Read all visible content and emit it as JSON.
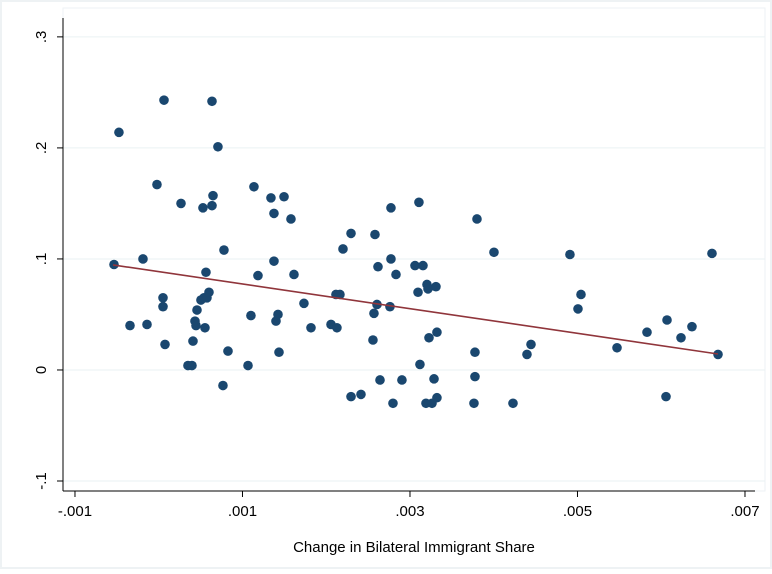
{
  "chart_data": {
    "type": "scatter",
    "xlabel": "Change in Bilateral Immigrant Share",
    "x": [
      -0.000534,
      -0.000475,
      -0.000343,
      -0.000188,
      -0.00014,
      -2.1e-05,
      5.1e-05,
      5.1e-05,
      7.5e-05,
      6.3e-05,
      0.000266,
      0.000349,
      0.000397,
      0.000409,
      0.000433,
      0.000445,
      0.000457,
      0.000504,
      0.000528,
      0.00054,
      0.000552,
      0.000564,
      0.000576,
      0.0006,
      0.000636,
      0.000648,
      0.000636,
      0.000707,
      0.000779,
      0.000767,
      0.000827,
      0.001066,
      0.001101,
      0.001137,
      0.001185,
      0.00134,
      0.001376,
      0.001376,
      0.0014,
      0.001424,
      0.001436,
      0.001496,
      0.001579,
      0.001615,
      0.001734,
      0.001818,
      0.002057,
      0.002116,
      0.002128,
      0.002164,
      0.0022,
      0.002296,
      0.002296,
      0.002415,
      0.002558,
      0.00257,
      0.002582,
      0.002606,
      0.002618,
      0.002642,
      0.002761,
      0.002773,
      0.002773,
      0.002797,
      0.002833,
      0.002904,
      0.00306,
      0.003096,
      0.003107,
      0.003119,
      0.003155,
      0.003191,
      0.003203,
      0.003215,
      0.003227,
      0.003263,
      0.003287,
      0.00331,
      0.003322,
      0.003322,
      0.003764,
      0.003776,
      0.003776,
      0.0038,
      0.004003,
      0.00423,
      0.004397,
      0.004445,
      0.00491,
      0.005006,
      0.005042,
      0.005472,
      0.00583,
      0.006057,
      0.006069,
      0.006236,
      0.006367,
      0.006606,
      0.006678
    ],
    "values": [
      0.095,
      0.214,
      0.04,
      0.1,
      0.041,
      0.167,
      0.057,
      0.065,
      0.023,
      0.243,
      0.15,
      0.004,
      0.004,
      0.026,
      0.044,
      0.04,
      0.054,
      0.063,
      0.146,
      0.065,
      0.038,
      0.088,
      0.065,
      0.07,
      0.148,
      0.157,
      0.242,
      0.201,
      0.108,
      -0.014,
      0.017,
      0.004,
      0.049,
      0.165,
      0.085,
      0.155,
      0.098,
      0.141,
      0.044,
      0.05,
      0.016,
      0.156,
      0.136,
      0.086,
      0.06,
      0.038,
      0.041,
      0.068,
      0.038,
      0.068,
      0.109,
      0.123,
      -0.024,
      -0.022,
      0.027,
      0.051,
      0.122,
      0.059,
      0.093,
      -0.009,
      0.057,
      0.1,
      0.146,
      -0.03,
      0.086,
      -0.009,
      0.094,
      0.07,
      0.151,
      0.005,
      0.094,
      -0.03,
      0.077,
      0.073,
      0.029,
      -0.03,
      -0.008,
      0.075,
      -0.025,
      0.034,
      -0.03,
      -0.006,
      0.016,
      0.136,
      0.106,
      -0.03,
      0.014,
      0.023,
      0.104,
      0.055,
      0.068,
      0.02,
      0.034,
      -0.024,
      0.045,
      0.029,
      0.039,
      0.105,
      0.014
    ],
    "color": "#1a476f",
    "fit_line": {
      "x": [
        -0.000546,
        0.006678
      ],
      "values": [
        0.0946,
        0.0144
      ],
      "color": "#90353b"
    },
    "xlim": [
      -0.001143,
      0.007239
    ],
    "ylim": [
      -0.109,
      0.326
    ],
    "xticks": [
      {
        "value": -0.001,
        "label": "-.001"
      },
      {
        "value": 0.001,
        "label": ".001"
      },
      {
        "value": 0.003,
        "label": ".003"
      },
      {
        "value": 0.005,
        "label": ".005"
      },
      {
        "value": 0.007,
        "label": ".007"
      }
    ],
    "yticks": [
      {
        "value": -0.1,
        "label": "-.1"
      },
      0,
      {
        "value": 0.1,
        "label": ".1"
      },
      {
        "value": 0.2,
        "label": ".2"
      },
      {
        "value": 0.3,
        "label": ".3"
      }
    ],
    "grid": true
  }
}
